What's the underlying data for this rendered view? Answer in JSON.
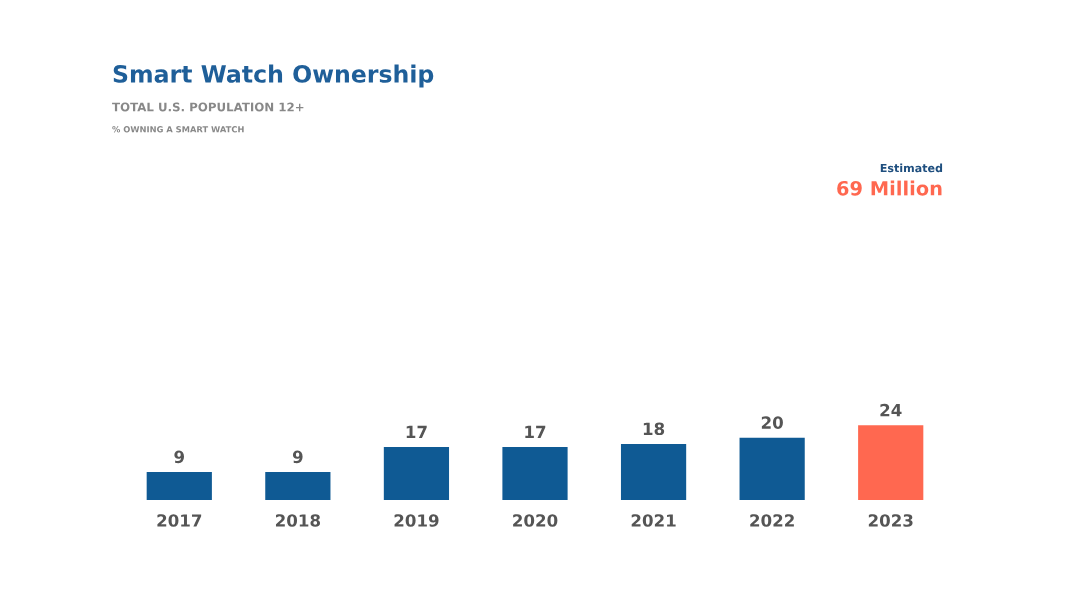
{
  "chart_data": {
    "type": "bar",
    "title": "Smart Watch Ownership",
    "subtitle": "TOTAL U.S. POPULATION 12+",
    "annotations": [
      "% OWNING A SMART WATCH",
      "Estimated",
      "69 Million"
    ],
    "categories": [
      "2017",
      "2018",
      "2019",
      "2020",
      "2021",
      "2022",
      "2023"
    ],
    "values": [
      9,
      9,
      17,
      17,
      18,
      20,
      24
    ],
    "colors": [
      "#0f5a94",
      "#0f5a94",
      "#0f5a94",
      "#0f5a94",
      "#0f5a94",
      "#0f5a94",
      "#ff6850"
    ],
    "data_labels": true,
    "grid": false,
    "legend": false
  }
}
